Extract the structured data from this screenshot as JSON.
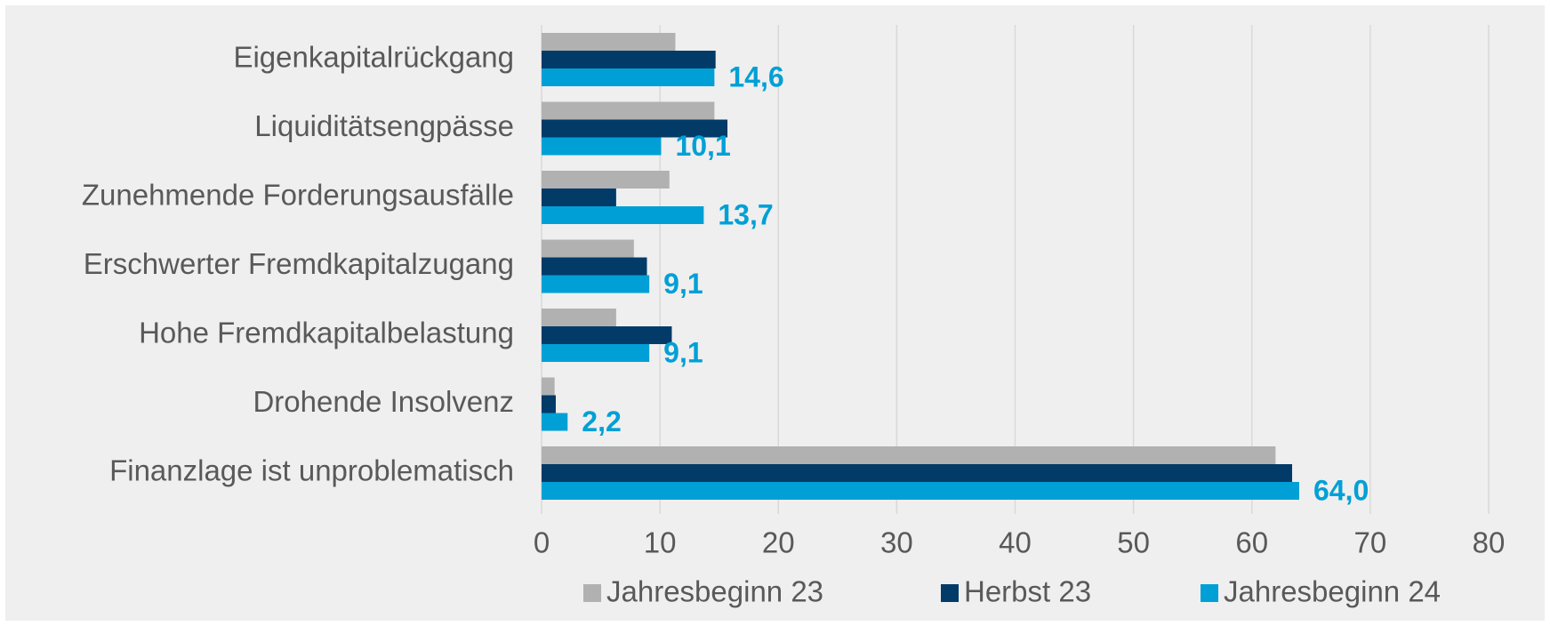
{
  "chart_data": {
    "type": "barh",
    "categories": [
      "Eigenkapitalrückgang",
      "Liquiditätsengpässe",
      "Zunehmende Forderungsausfälle",
      "Erschwerter Fremdkapitalzugang",
      "Hohe Fremdkapitalbelastung",
      "Drohende Insolvenz",
      "Finanzlage ist unproblematisch"
    ],
    "series": [
      {
        "name": "Jahresbeginn 23",
        "color": "#b1b1b1",
        "values": [
          11.3,
          14.6,
          10.8,
          7.8,
          6.3,
          1.1,
          62.0
        ]
      },
      {
        "name": "Herbst 23",
        "color": "#023a68",
        "values": [
          14.7,
          15.7,
          6.3,
          8.9,
          11.0,
          1.2,
          63.4
        ]
      },
      {
        "name": "Jahresbeginn 24",
        "color": "#00a0d6",
        "values": [
          14.6,
          10.1,
          13.7,
          9.1,
          9.1,
          2.2,
          64.0
        ],
        "value_labels": [
          "14,6",
          "10,1",
          "13,7",
          "9,1",
          "9,1",
          "2,2",
          "64,0"
        ]
      }
    ],
    "xlim": [
      0,
      80
    ],
    "xticks": [
      0,
      10,
      20,
      30,
      40,
      50,
      60,
      70,
      80
    ],
    "grid": true,
    "legend": "bottom"
  }
}
